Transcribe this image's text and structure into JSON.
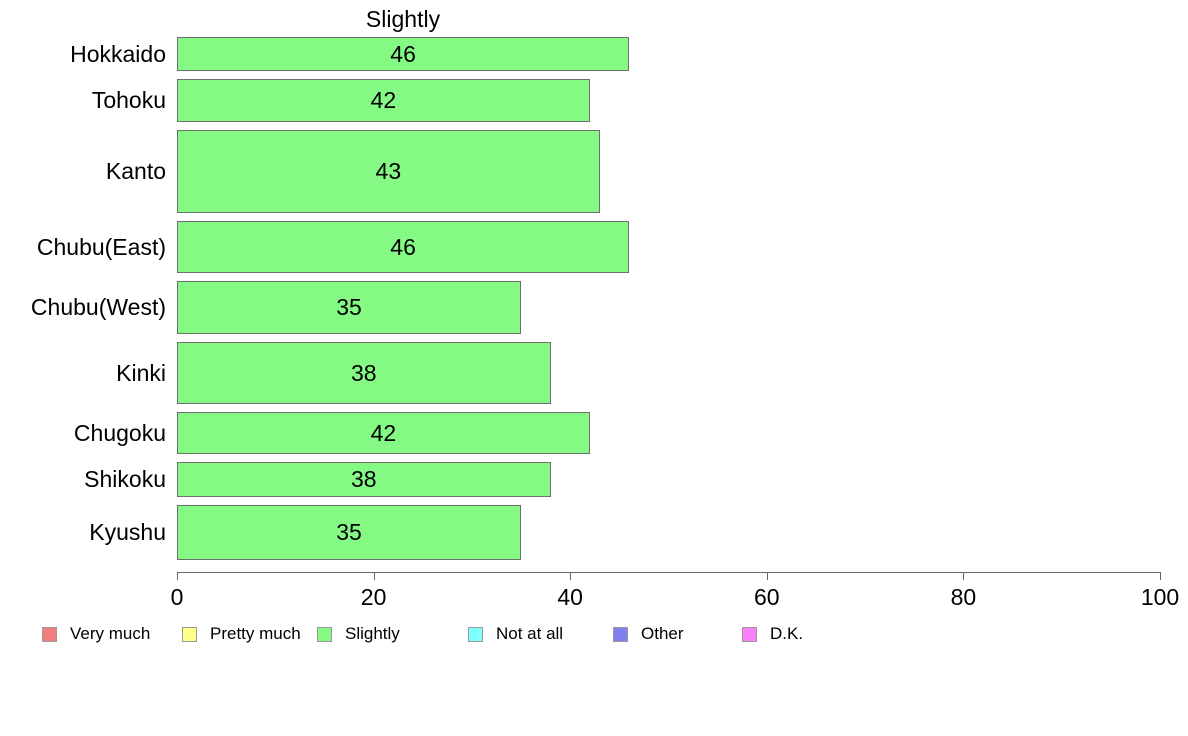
{
  "chart_data": {
    "type": "bar",
    "orientation": "horizontal",
    "title": "Slightly",
    "categories": [
      "Hokkaido",
      "Tohoku",
      "Kanto",
      "Chubu(East)",
      "Chubu(West)",
      "Kinki",
      "Chugoku",
      "Shikoku",
      "Kyushu"
    ],
    "values": [
      46,
      42,
      43,
      46,
      35,
      38,
      42,
      38,
      35
    ],
    "value_labels": [
      "46",
      "42",
      "43",
      "46",
      "35",
      "38",
      "42",
      "38",
      "35"
    ],
    "bar_relative_heights": [
      34,
      43,
      83,
      52,
      53,
      62,
      42,
      35,
      55
    ],
    "xlim": [
      0,
      100
    ],
    "x_ticks": [
      "0",
      "20",
      "40",
      "60",
      "80",
      "100"
    ],
    "x_tick_values": [
      0,
      20,
      40,
      60,
      80,
      100
    ],
    "grid": false,
    "bar_fill_color": "#84F984",
    "bar_border_color": "#6E6E6E",
    "legend_position": "bottom",
    "legend": [
      {
        "label": "Very much",
        "color": "#F47E7E"
      },
      {
        "label": "Pretty much",
        "color": "#FFFF8C"
      },
      {
        "label": "Slightly",
        "color": "#84F984"
      },
      {
        "label": "Not at all",
        "color": "#80FFFF"
      },
      {
        "label": "Other",
        "color": "#8080F0"
      },
      {
        "label": "D.K.",
        "color": "#F980F9"
      }
    ]
  }
}
